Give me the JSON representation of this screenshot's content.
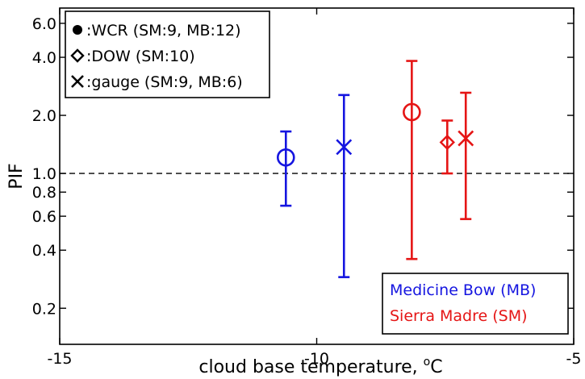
{
  "chart_data": {
    "type": "scatter",
    "title": "",
    "xlabel": "cloud base temperature, ",
    "xlabel_unit": "C",
    "xlabel_superscript": "o",
    "ylabel": "PIF",
    "xlim": [
      -15,
      -5
    ],
    "ylim": [
      0.13,
      7.2
    ],
    "yscale": "log",
    "xticks": [
      -15,
      -10,
      -5
    ],
    "xtick_labels": [
      "-15",
      "-10",
      "-5"
    ],
    "yticks": [
      0.2,
      0.4,
      0.6,
      0.8,
      1.0,
      2.0,
      4.0,
      6.0
    ],
    "ytick_labels": [
      "0.2",
      "0.4",
      "0.6",
      "0.8",
      "1.0",
      "2.0",
      "4.0",
      "6.0"
    ],
    "grid": false,
    "reference_line": {
      "y": 1.0,
      "style": "dashed"
    },
    "colors": {
      "MB": "#1515e0",
      "SM": "#e51515"
    },
    "points": [
      {
        "region": "MB",
        "instrument": "WCR",
        "marker": "circle",
        "x": -10.6,
        "y": 1.21,
        "ylow": 0.68,
        "yhigh": 1.65
      },
      {
        "region": "MB",
        "instrument": "gauge",
        "marker": "x",
        "x": -9.47,
        "y": 1.37,
        "ylow": 0.29,
        "yhigh": 2.55
      },
      {
        "region": "SM",
        "instrument": "WCR",
        "marker": "circle",
        "x": -8.15,
        "y": 2.08,
        "ylow": 0.36,
        "yhigh": 3.83
      },
      {
        "region": "SM",
        "instrument": "DOW",
        "marker": "diamond",
        "x": -7.46,
        "y": 1.45,
        "ylow": 1.0,
        "yhigh": 1.88
      },
      {
        "region": "SM",
        "instrument": "gauge",
        "marker": "x",
        "x": -7.1,
        "y": 1.52,
        "ylow": 0.58,
        "yhigh": 2.62
      }
    ],
    "legend_instruments": {
      "placement": "top-left",
      "entries": [
        {
          "marker": "dot",
          "label": ":WCR (SM:9, MB:12)"
        },
        {
          "marker": "diamond",
          "label": ":DOW (SM:10)"
        },
        {
          "marker": "x",
          "label": ":gauge (SM:9, MB:6)"
        }
      ]
    },
    "legend_regions": {
      "placement": "bottom-right",
      "entries": [
        {
          "label": "Medicine Bow (MB)",
          "color_key": "MB"
        },
        {
          "label": "Sierra Madre (SM)",
          "color_key": "SM"
        }
      ]
    }
  }
}
